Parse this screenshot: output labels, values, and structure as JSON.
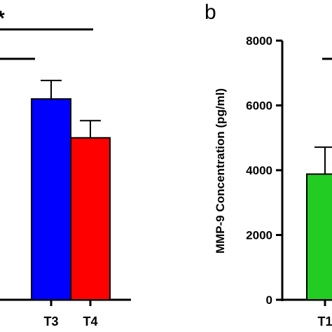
{
  "chart_data": [
    {
      "type": "bar",
      "panel_label": "",
      "ylabel": "",
      "categories": [
        "T3",
        "T4"
      ],
      "series": [
        {
          "values": [
            6200,
            5000
          ],
          "errors": [
            570,
            530
          ],
          "colors": [
            "#0000ff",
            "#ff0000"
          ]
        }
      ],
      "ylim": [
        0,
        8000
      ],
      "significance": [
        {
          "label": "*"
        },
        {
          "label": ""
        }
      ]
    },
    {
      "type": "bar",
      "panel_label": "b",
      "ylabel": "MMP-9 Concentration (pg/ml)",
      "yticks": [
        "0",
        "2000",
        "4000",
        "6000",
        "8000"
      ],
      "categories": [
        "T1"
      ],
      "series": [
        {
          "values": [
            3880
          ],
          "errors": [
            830
          ],
          "colors": [
            "#22cc22"
          ]
        }
      ],
      "ylim": [
        0,
        8000
      ]
    }
  ]
}
